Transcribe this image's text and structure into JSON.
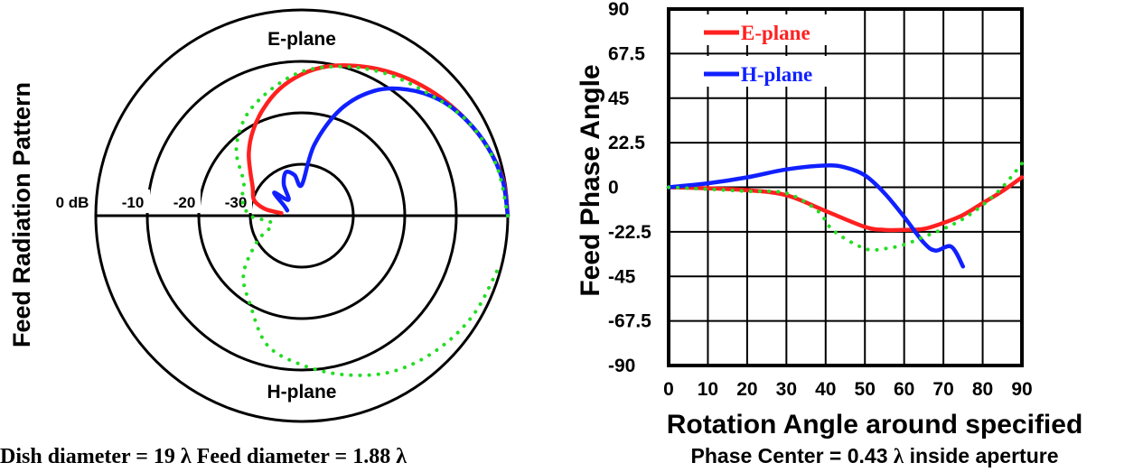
{
  "polar_chart": {
    "ylabel": "Feed Radiation Pattern",
    "top_label": "E-plane",
    "bottom_label": "H-plane",
    "ring_labels": [
      "0 dB",
      "-10",
      "-20",
      "-30"
    ],
    "caption": "Dish diameter = 19 λ    Feed diameter = 1.88 λ"
  },
  "chart_data": [
    {
      "type": "line",
      "subtype": "polar",
      "title": "",
      "ylabel": "Feed Radiation Pattern",
      "ring_labels_db": [
        0,
        -10,
        -20,
        -30
      ],
      "r_range_db": [
        -40,
        0
      ],
      "angle_range_deg": [
        0,
        180
      ],
      "series": [
        {
          "name": "E-plane",
          "color": "#ff2020",
          "style": "solid",
          "points_angle_deg_db": [
            [
              0,
              0
            ],
            [
              10,
              -0.3
            ],
            [
              20,
              -1.5
            ],
            [
              30,
              -3
            ],
            [
              40,
              -4.5
            ],
            [
              50,
              -6
            ],
            [
              60,
              -7.5
            ],
            [
              70,
              -9
            ],
            [
              80,
              -10.5
            ],
            [
              90,
              -12.5
            ],
            [
              100,
              -15
            ],
            [
              110,
              -18
            ],
            [
              120,
              -21
            ],
            [
              130,
              -24
            ],
            [
              140,
              -27
            ],
            [
              150,
              -29
            ],
            [
              160,
              -30
            ],
            [
              165,
              -31
            ],
            [
              170,
              -33
            ],
            [
              173,
              -36
            ]
          ]
        },
        {
          "name": "H-plane",
          "color": "#1020ff",
          "style": "solid",
          "points_angle_deg_db": [
            [
              0,
              0
            ],
            [
              10,
              -0.4
            ],
            [
              20,
              -1.5
            ],
            [
              30,
              -3
            ],
            [
              40,
              -5
            ],
            [
              50,
              -8
            ],
            [
              60,
              -12
            ],
            [
              70,
              -18
            ],
            [
              80,
              -26
            ],
            [
              90,
              -34
            ],
            [
              100,
              -32
            ],
            [
              110,
              -31
            ],
            [
              120,
              -33
            ],
            [
              130,
              -36
            ],
            [
              140,
              -33
            ],
            [
              150,
              -36
            ],
            [
              160,
              -37
            ]
          ]
        },
        {
          "name": "",
          "color": "#22dd22",
          "style": "dotted",
          "points_angle_deg_db": [
            [
              0,
              0
            ],
            [
              15,
              -1
            ],
            [
              30,
              -3
            ],
            [
              45,
              -6
            ],
            [
              60,
              -8
            ],
            [
              75,
              -10
            ],
            [
              90,
              -12
            ],
            [
              105,
              -15
            ],
            [
              120,
              -18
            ],
            [
              135,
              -22
            ],
            [
              150,
              -27
            ],
            [
              165,
              -28
            ],
            [
              180,
              -30
            ],
            [
              195,
              -34
            ],
            [
              210,
              -30
            ],
            [
              225,
              -24
            ],
            [
              240,
              -20
            ],
            [
              255,
              -14
            ],
            [
              270,
              -11
            ],
            [
              285,
              -8
            ],
            [
              300,
              -5
            ],
            [
              315,
              -3
            ],
            [
              330,
              -1.5
            ],
            [
              345,
              -0.5
            ]
          ]
        }
      ]
    },
    {
      "type": "line",
      "title": "",
      "xlabel": "Rotation Angle around specified",
      "ylabel": "Feed Phase Angle",
      "xlim": [
        0,
        90
      ],
      "ylim": [
        -90,
        90
      ],
      "x_ticks": [
        0,
        10,
        20,
        30,
        40,
        50,
        60,
        70,
        80,
        90
      ],
      "y_ticks": [
        90,
        67.5,
        45,
        22.5,
        0,
        -22.5,
        -45,
        -67.5,
        -90
      ],
      "grid": true,
      "legend_position": "top-left",
      "series": [
        {
          "name": "E-plane",
          "color": "#ff2020",
          "style": "solid",
          "points": [
            [
              0,
              0
            ],
            [
              10,
              -0.5
            ],
            [
              20,
              -1.5
            ],
            [
              30,
              -4
            ],
            [
              40,
              -12
            ],
            [
              50,
              -20
            ],
            [
              55,
              -21.5
            ],
            [
              60,
              -21.5
            ],
            [
              65,
              -21
            ],
            [
              70,
              -18
            ],
            [
              75,
              -14
            ],
            [
              80,
              -8
            ],
            [
              85,
              -2
            ],
            [
              90,
              5
            ]
          ]
        },
        {
          "name": "H-plane",
          "color": "#1020ff",
          "style": "solid",
          "points": [
            [
              0,
              0
            ],
            [
              10,
              2
            ],
            [
              20,
              5
            ],
            [
              30,
              9
            ],
            [
              40,
              11
            ],
            [
              45,
              10
            ],
            [
              50,
              6
            ],
            [
              55,
              -3
            ],
            [
              60,
              -15
            ],
            [
              65,
              -28
            ],
            [
              68,
              -32
            ],
            [
              72,
              -30
            ],
            [
              75,
              -40
            ]
          ]
        },
        {
          "name": "",
          "color": "#22dd22",
          "style": "dotted",
          "points": [
            [
              0,
              0
            ],
            [
              10,
              -1
            ],
            [
              20,
              -2
            ],
            [
              30,
              -3
            ],
            [
              38,
              -12
            ],
            [
              42,
              -22
            ],
            [
              50,
              -31
            ],
            [
              55,
              -31
            ],
            [
              60,
              -29
            ],
            [
              65,
              -25
            ],
            [
              70,
              -21
            ],
            [
              75,
              -16
            ],
            [
              80,
              -9
            ],
            [
              85,
              0
            ],
            [
              90,
              12
            ]
          ]
        }
      ]
    }
  ],
  "phase_chart": {
    "ylabel": "Feed Phase Angle",
    "xlabel": "Rotation Angle around specified",
    "caption_prefix": "Phase Center = 0.43 ",
    "caption_lambda": "λ",
    "caption_suffix": " inside aperture"
  }
}
